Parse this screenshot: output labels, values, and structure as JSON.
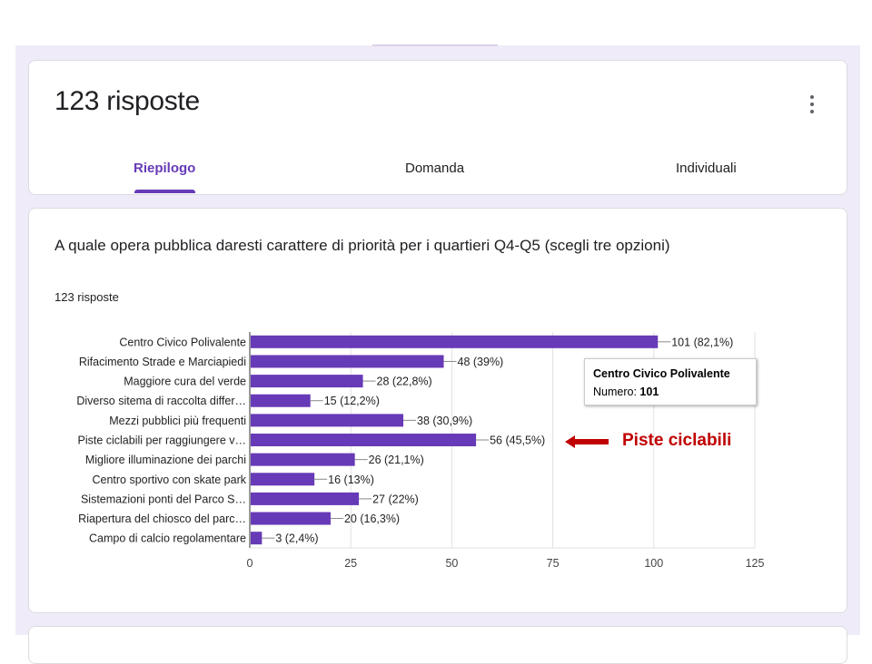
{
  "header": {
    "responses_title": "123 risposte",
    "tabs": [
      {
        "label": "Riepilogo",
        "active": true
      },
      {
        "label": "Domanda",
        "active": false
      },
      {
        "label": "Individuali",
        "active": false
      }
    ]
  },
  "question": {
    "title": "A quale opera pubblica daresti carattere di priorità per i quartieri Q4-Q5 (scegli tre opzioni)",
    "response_count": "123 risposte"
  },
  "tooltip": {
    "title": "Centro Civico Polivalente",
    "label": "Numero:",
    "value": "101"
  },
  "annotation": {
    "text": "Piste ciclabili",
    "color": "#c00000"
  },
  "colors": {
    "accent": "#673ab7",
    "bar": "#673ab7",
    "background": "#f0ebf8"
  },
  "chart_data": {
    "type": "bar",
    "orientation": "horizontal",
    "categories": [
      "Centro Civico Polivalente",
      "Rifacimento Strade e Marciapiedi",
      "Maggiore cura del verde",
      "Diverso sitema di raccolta differ…",
      "Mezzi pubblici più frequenti",
      "Piste ciclabili per raggiungere v…",
      "Migliore illuminazione dei parchi",
      "Centro sportivo con skate park",
      "Sistemazioni ponti del Parco S…",
      "Riapertura del chiosco del parc…",
      "Campo di calcio regolamentare"
    ],
    "values": [
      101,
      48,
      28,
      15,
      38,
      56,
      26,
      16,
      27,
      20,
      3
    ],
    "data_labels": [
      "101 (82,1%)",
      "48 (39%)",
      "28 (22,8%)",
      "15 (12,2%)",
      "38 (30,9%)",
      "56 (45,5%)",
      "26 (21,1%)",
      "16 (13%)",
      "27 (22%)",
      "20 (16,3%)",
      "3 (2,4%)"
    ],
    "xlim": [
      0,
      125
    ],
    "ticks": [
      0,
      25,
      50,
      75,
      100,
      125
    ],
    "grid": true,
    "color": "#673ab7"
  }
}
